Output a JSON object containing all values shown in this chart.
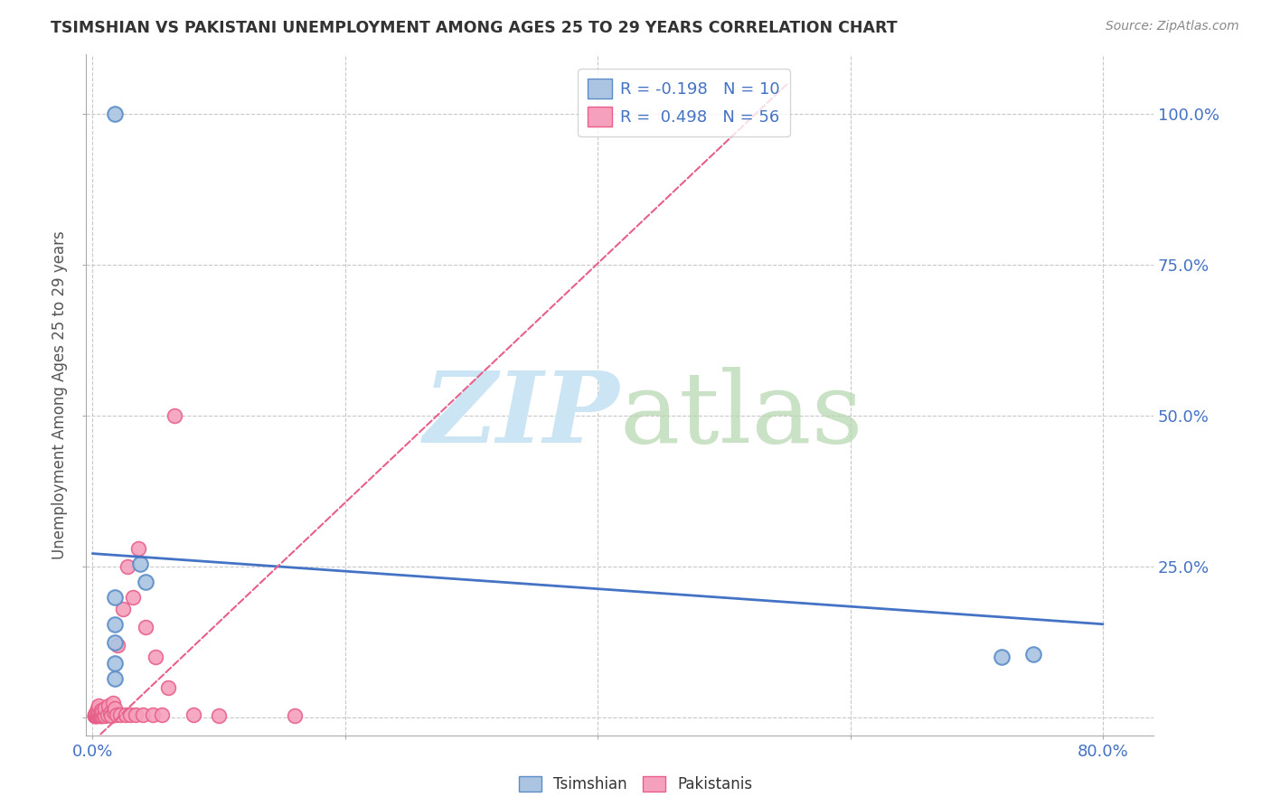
{
  "title": "TSIMSHIAN VS PAKISTANI UNEMPLOYMENT AMONG AGES 25 TO 29 YEARS CORRELATION CHART",
  "source": "Source: ZipAtlas.com",
  "ylabel": "Unemployment Among Ages 25 to 29 years",
  "xlim": [
    -0.005,
    0.84
  ],
  "ylim": [
    -0.03,
    1.1
  ],
  "legend_tsimshian_label": "R = -0.198   N = 10",
  "legend_pakistani_label": "R =  0.498   N = 56",
  "tsimshian_color": "#aac4e2",
  "pakistani_color": "#f5a0bc",
  "tsimshian_edge_color": "#5b8ec9",
  "pakistani_edge_color": "#e8608a",
  "tsimshian_line_color": "#4472c4",
  "pakistani_line_color": "#e8608a",
  "watermark_zip_color": "#cce5f5",
  "watermark_atlas_color": "#b8d8b0",
  "background_color": "#ffffff",
  "grid_color": "#c8c8c8",
  "axis_color": "#aaaaaa",
  "title_color": "#333333",
  "label_color": "#555555",
  "tick_color": "#4472c4",
  "source_color": "#888888",
  "tsimshian_x": [
    0.018,
    0.018,
    0.018,
    0.018,
    0.018,
    0.018,
    0.038,
    0.042,
    0.72,
    0.745
  ],
  "tsimshian_y": [
    1.0,
    0.2,
    0.155,
    0.125,
    0.09,
    0.065,
    0.255,
    0.225,
    0.1,
    0.105
  ],
  "pakistani_x": [
    0.002,
    0.002,
    0.002,
    0.002,
    0.002,
    0.003,
    0.003,
    0.003,
    0.003,
    0.003,
    0.003,
    0.004,
    0.004,
    0.004,
    0.004,
    0.004,
    0.005,
    0.005,
    0.005,
    0.005,
    0.006,
    0.006,
    0.007,
    0.007,
    0.008,
    0.008,
    0.009,
    0.01,
    0.01,
    0.012,
    0.013,
    0.014,
    0.015,
    0.016,
    0.017,
    0.018,
    0.019,
    0.02,
    0.022,
    0.024,
    0.026,
    0.028,
    0.03,
    0.032,
    0.034,
    0.036,
    0.04,
    0.042,
    0.048,
    0.05,
    0.055,
    0.06,
    0.065,
    0.08,
    0.1,
    0.16
  ],
  "pakistani_y": [
    0.003,
    0.003,
    0.003,
    0.004,
    0.005,
    0.003,
    0.004,
    0.005,
    0.006,
    0.007,
    0.008,
    0.003,
    0.005,
    0.008,
    0.01,
    0.015,
    0.003,
    0.006,
    0.01,
    0.02,
    0.003,
    0.008,
    0.004,
    0.012,
    0.003,
    0.01,
    0.005,
    0.003,
    0.015,
    0.005,
    0.02,
    0.008,
    0.003,
    0.025,
    0.01,
    0.015,
    0.005,
    0.12,
    0.005,
    0.18,
    0.005,
    0.25,
    0.005,
    0.2,
    0.005,
    0.28,
    0.005,
    0.15,
    0.005,
    0.1,
    0.005,
    0.05,
    0.5,
    0.005,
    0.003,
    0.003
  ],
  "tsimshian_trendline_x": [
    0.0,
    0.8
  ],
  "tsimshian_trendline_y": [
    0.272,
    0.155
  ],
  "pakistani_trendline_x": [
    -0.005,
    0.55
  ],
  "pakistani_trendline_y": [
    -0.05,
    1.05
  ],
  "yticks": [
    0.0,
    0.25,
    0.5,
    0.75,
    1.0
  ],
  "ytick_labels": [
    "",
    "25.0%",
    "50.0%",
    "75.0%",
    "100.0%"
  ],
  "xticks": [
    0.0,
    0.2,
    0.4,
    0.6,
    0.8
  ],
  "xtick_labels_show": [
    "0.0%",
    "80.0%"
  ],
  "marker_size": 130
}
